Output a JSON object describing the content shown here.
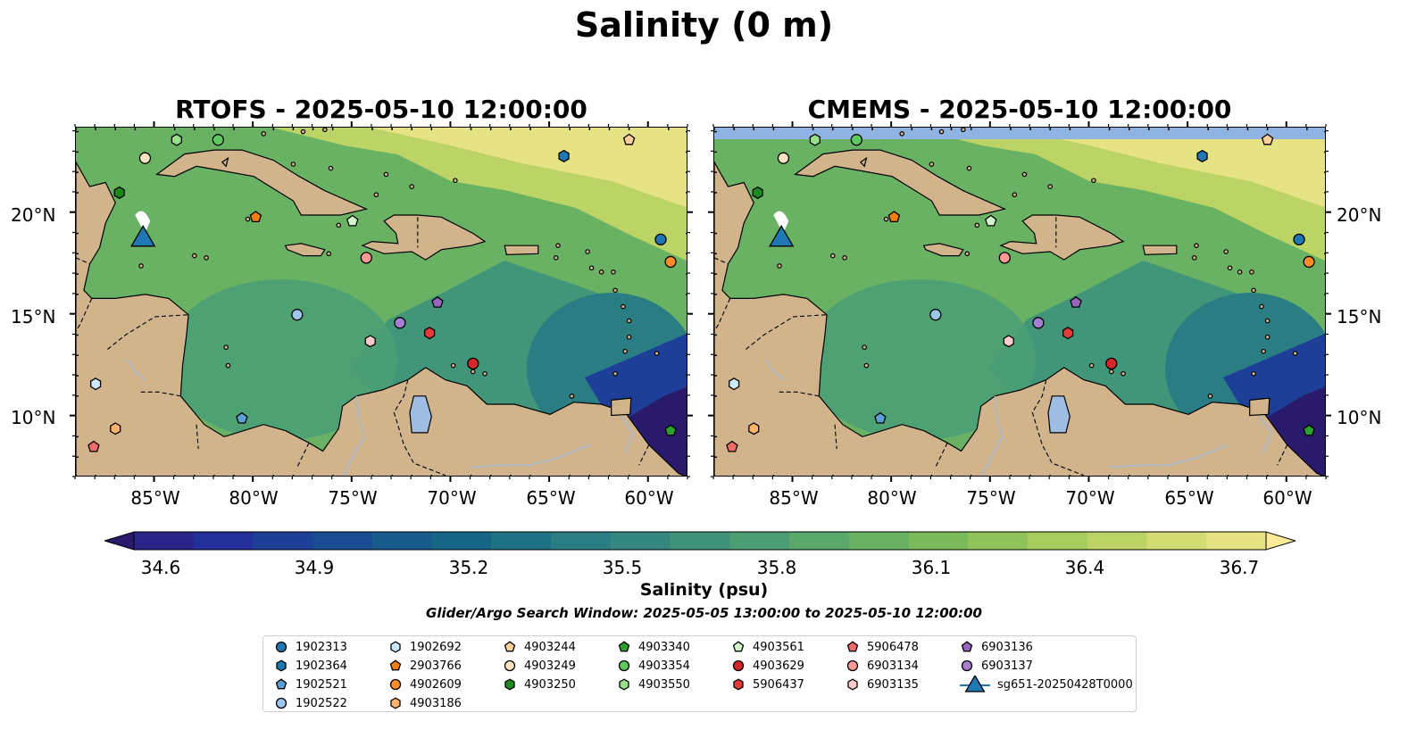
{
  "title": "Salinity (0 m)",
  "panels": [
    {
      "title": "RTOFS - 2025-05-10 12:00:00"
    },
    {
      "title": "CMEMS - 2025-05-10 12:00:00"
    }
  ],
  "lat_ticks": [
    "20°N",
    "15°N",
    "10°N"
  ],
  "lon_ticks": [
    "85°W",
    "80°W",
    "75°W",
    "70°W",
    "65°W",
    "60°W"
  ],
  "colorbar": {
    "label": "Salinity (psu)",
    "ticks": [
      "34.6",
      "34.9",
      "35.2",
      "35.5",
      "35.8",
      "36.1",
      "36.4",
      "36.7"
    ],
    "colormap": "haline",
    "colors": [
      "#2a1a6c",
      "#29238a",
      "#24309a",
      "#1d3f98",
      "#184d92",
      "#175a8c",
      "#186687",
      "#1f7285",
      "#2a7d83",
      "#34887f",
      "#3f937a",
      "#4b9e74",
      "#59a86c",
      "#69b264",
      "#7cbb5c",
      "#90c45a",
      "#a6cc5d",
      "#bcd466",
      "#d1dc73",
      "#e6e384",
      "#fbeb98"
    ]
  },
  "search_window": "Glider/Argo Search Window: 2025-05-05 13:00:00 to 2025-05-10 12:00:00",
  "legend": [
    {
      "label": "1902313",
      "marker": "circle",
      "color": "#1f77b4"
    },
    {
      "label": "1902364",
      "marker": "hexagon",
      "color": "#1f77b4"
    },
    {
      "label": "1902521",
      "marker": "pentagon",
      "color": "#5d9fd5"
    },
    {
      "label": "1902522",
      "marker": "circle",
      "color": "#9ec5ea"
    },
    {
      "label": "1902692",
      "marker": "hexagon",
      "color": "#cfe8f7"
    },
    {
      "label": "2903766",
      "marker": "pentagon",
      "color": "#f07f10"
    },
    {
      "label": "4902609",
      "marker": "circle",
      "color": "#ff8c2a"
    },
    {
      "label": "4903186",
      "marker": "hexagon",
      "color": "#ffb46e"
    },
    {
      "label": "4903244",
      "marker": "pentagon",
      "color": "#ffcf9a"
    },
    {
      "label": "4903249",
      "marker": "circle",
      "color": "#ffe4c4"
    },
    {
      "label": "4903250",
      "marker": "hexagon",
      "color": "#1e8a1e"
    },
    {
      "label": "4903340",
      "marker": "pentagon",
      "color": "#2ca02c"
    },
    {
      "label": "4903354",
      "marker": "circle",
      "color": "#5ec95e"
    },
    {
      "label": "4903550",
      "marker": "hexagon",
      "color": "#98df8a"
    },
    {
      "label": "4903561",
      "marker": "pentagon",
      "color": "#d4f5cc"
    },
    {
      "label": "4903629",
      "marker": "circle",
      "color": "#d62728"
    },
    {
      "label": "5906437",
      "marker": "hexagon",
      "color": "#e33a3a"
    },
    {
      "label": "5906478",
      "marker": "pentagon",
      "color": "#f06b6b"
    },
    {
      "label": "6903134",
      "marker": "circle",
      "color": "#ff9a96"
    },
    {
      "label": "6903135",
      "marker": "hexagon",
      "color": "#ffcaca"
    },
    {
      "label": "6903136",
      "marker": "pentagon",
      "color": "#9467bd"
    },
    {
      "label": "6903137",
      "marker": "circle",
      "color": "#a67fd0"
    },
    {
      "label": "sg651-20250428T0000",
      "marker": "triangle",
      "color": "#1f77b4"
    }
  ],
  "map_colors": {
    "land": "#d2b48c",
    "lake": "#9fbde3",
    "river": "#a8b8cc",
    "cmems_strip": "#8fb3e3"
  },
  "chart_data": {
    "type": "map",
    "extent": {
      "lon": [
        -89,
        -58
      ],
      "lat": [
        7,
        24.2
      ]
    },
    "glider": {
      "name": "sg651-20250428T0000",
      "lon": -85.6,
      "lat": 18.7
    },
    "floats": [
      {
        "id": "1902313",
        "lon": -59.4,
        "lat": 18.7
      },
      {
        "id": "1902364",
        "lon": -64.3,
        "lat": 22.8
      },
      {
        "id": "1902521",
        "lon": -80.6,
        "lat": 9.9
      },
      {
        "id": "1902522",
        "lon": -77.8,
        "lat": 15.0
      },
      {
        "id": "1902692",
        "lon": -88.0,
        "lat": 11.6
      },
      {
        "id": "2903766",
        "lon": -79.9,
        "lat": 19.8
      },
      {
        "id": "4902609",
        "lon": -58.9,
        "lat": 17.6
      },
      {
        "id": "4903186",
        "lon": -87.0,
        "lat": 9.4
      },
      {
        "id": "4903244",
        "lon": -61.0,
        "lat": 23.6
      },
      {
        "id": "4903249",
        "lon": -85.5,
        "lat": 22.7
      },
      {
        "id": "4903250",
        "lon": -86.8,
        "lat": 21.0
      },
      {
        "id": "4903340",
        "lon": -58.9,
        "lat": 9.3
      },
      {
        "id": "4903354",
        "lon": -81.8,
        "lat": 23.6
      },
      {
        "id": "4903550",
        "lon": -83.9,
        "lat": 23.6
      },
      {
        "id": "4903561",
        "lon": -75.0,
        "lat": 19.6
      },
      {
        "id": "4903629",
        "lon": -68.9,
        "lat": 12.6
      },
      {
        "id": "5906437",
        "lon": -71.1,
        "lat": 14.1
      },
      {
        "id": "5906478",
        "lon": -88.1,
        "lat": 8.5
      },
      {
        "id": "6903134",
        "lon": -74.3,
        "lat": 17.8
      },
      {
        "id": "6903135",
        "lon": -74.1,
        "lat": 13.7
      },
      {
        "id": "6903136",
        "lon": -70.7,
        "lat": 15.6
      },
      {
        "id": "6903137",
        "lon": -72.6,
        "lat": 14.6
      }
    ]
  }
}
